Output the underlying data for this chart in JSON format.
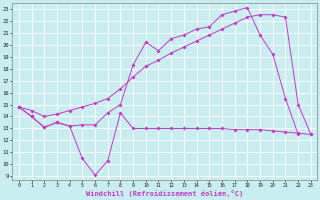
{
  "xlabel": "Windchill (Refroidissement éolien,°C)",
  "xlim": [
    -0.5,
    23.5
  ],
  "ylim": [
    8.7,
    23.5
  ],
  "xticks": [
    0,
    1,
    2,
    3,
    4,
    5,
    6,
    7,
    8,
    9,
    10,
    11,
    12,
    13,
    14,
    15,
    16,
    17,
    18,
    19,
    20,
    21,
    22,
    23
  ],
  "yticks": [
    9,
    10,
    11,
    12,
    13,
    14,
    15,
    16,
    17,
    18,
    19,
    20,
    21,
    22,
    23
  ],
  "bg_color": "#c8eef0",
  "line_color": "#cc33cc",
  "line1_x": [
    0,
    1,
    2,
    3,
    4,
    5,
    6,
    7,
    8,
    9,
    10,
    11,
    12,
    13,
    14,
    15,
    16,
    17,
    18,
    19,
    20,
    21,
    22,
    23
  ],
  "line1_y": [
    14.8,
    14.0,
    13.1,
    13.5,
    13.2,
    10.5,
    9.1,
    10.3,
    14.3,
    13.0,
    13.0,
    13.0,
    13.0,
    13.0,
    13.0,
    13.0,
    13.0,
    12.9,
    12.9,
    12.9,
    12.8,
    12.7,
    12.6,
    12.5
  ],
  "line2_x": [
    0,
    1,
    2,
    3,
    4,
    5,
    6,
    7,
    8,
    9,
    10,
    11,
    12,
    13,
    14,
    15,
    16,
    17,
    18,
    19,
    20,
    21,
    22
  ],
  "line2_y": [
    14.8,
    14.0,
    13.1,
    13.5,
    13.2,
    13.3,
    13.3,
    14.3,
    15.0,
    18.3,
    20.2,
    19.5,
    20.5,
    20.8,
    21.3,
    21.5,
    22.5,
    22.8,
    23.1,
    20.8,
    19.2,
    15.5,
    12.5
  ],
  "line3_x": [
    0,
    1,
    2,
    3,
    4,
    5,
    6,
    7,
    8,
    9,
    10,
    11,
    12,
    13,
    14,
    15,
    16,
    17,
    18,
    19,
    20,
    21,
    22,
    23
  ],
  "line3_y": [
    14.8,
    14.5,
    14.0,
    14.2,
    14.5,
    14.8,
    15.1,
    15.5,
    16.3,
    17.3,
    18.2,
    18.7,
    19.3,
    19.8,
    20.3,
    20.8,
    21.3,
    21.8,
    22.3,
    22.5,
    22.5,
    22.3,
    15.0,
    12.5
  ]
}
